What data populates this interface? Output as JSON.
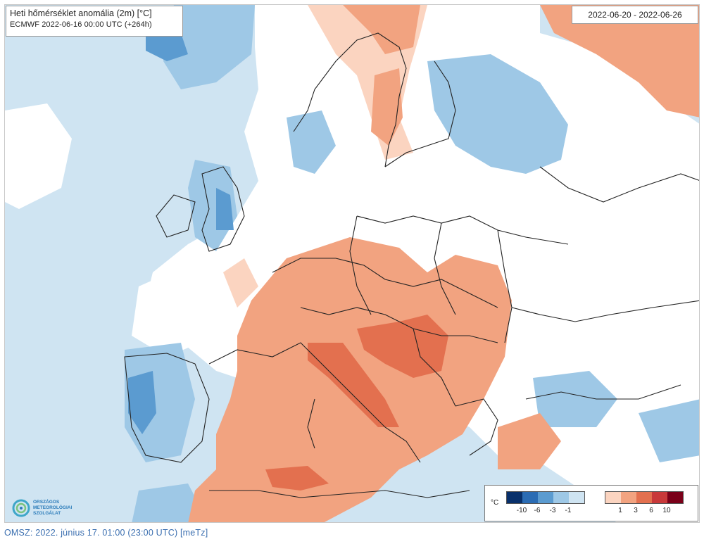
{
  "map": {
    "title": "Heti hőmérséklet anomália (2m) [°C]",
    "model_run": "ECMWF 2022-06-16 00:00 UTC (+264h)",
    "period": "2022-06-20 - 2022-06-26"
  },
  "legend": {
    "unit": "°C",
    "negative_colors": [
      "#08306b",
      "#2b6cb4",
      "#5b9bd0",
      "#9ec8e6",
      "#cfe4f2"
    ],
    "negative_labels": [
      "-10",
      "-6",
      "-3",
      "-1"
    ],
    "positive_colors": [
      "#fbd4c0",
      "#f2a380",
      "#e3704f",
      "#c8393a",
      "#7a0019"
    ],
    "positive_labels": [
      "1",
      "3",
      "6",
      "10"
    ]
  },
  "logo": {
    "line1": "ORSZÁGOS",
    "line2": "METEOROLÓGIAI",
    "line3": "SZOLGÁLAT"
  },
  "footer": "OMSZ: 2022. június 17. 01:00 (23:00 UTC) [meTz]",
  "colors": {
    "light_blue": "#cfe4f2",
    "mid_blue": "#9ec8e6",
    "blue": "#5b9bd0",
    "dark_blue": "#2b6cb4",
    "light_orange": "#fbd4c0",
    "orange": "#f2a380",
    "red": "#e3704f"
  }
}
